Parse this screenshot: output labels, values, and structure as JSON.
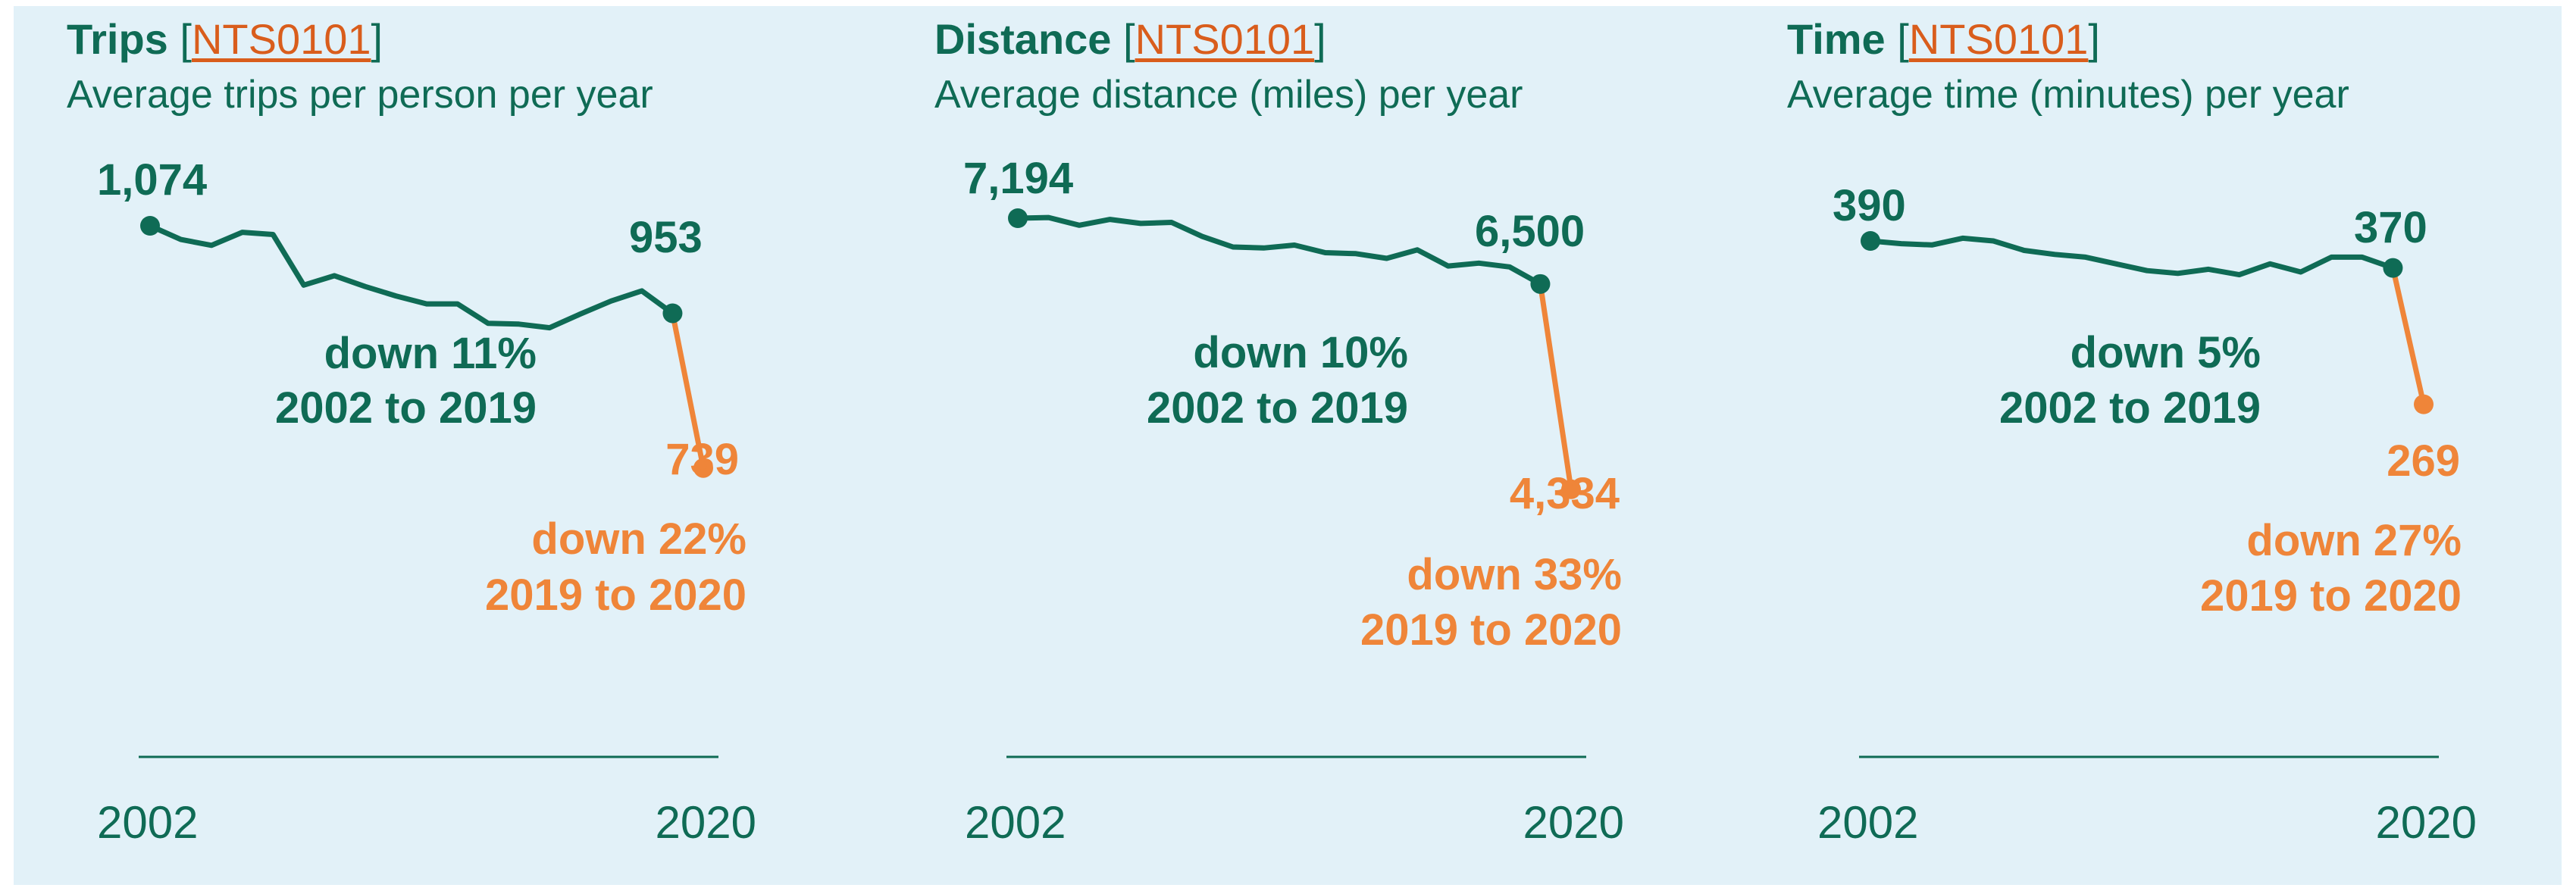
{
  "colors": {
    "green": "#0f6b55",
    "orange": "#ef8539",
    "link": "#d95d1c",
    "background": "#e2f1f8"
  },
  "panels": [
    {
      "title": "Trips",
      "title_link": "NTS0101",
      "subtitle": "Average trips per person per year",
      "start_label": "1,074",
      "end_green_label": "953",
      "end_orange_label": "739",
      "green_note": [
        "down 11%",
        "2002 to 2019"
      ],
      "orange_note": [
        "down 22%",
        "2019 to 2020"
      ],
      "x_first": "2002",
      "x_last": "2020"
    },
    {
      "title": "Distance",
      "title_link": "NTS0101",
      "subtitle": "Average distance (miles) per year",
      "start_label": "7,194",
      "end_green_label": "6,500",
      "end_orange_label": "4,334",
      "green_note": [
        "down 10%",
        "2002 to 2019"
      ],
      "orange_note": [
        "down 33%",
        "2019 to 2020"
      ],
      "x_first": "2002",
      "x_last": "2020"
    },
    {
      "title": "Time",
      "title_link": "NTS0101",
      "subtitle": "Average time (minutes) per year",
      "start_label": "390",
      "end_green_label": "370",
      "end_orange_label": "269",
      "green_note": [
        "down 5%",
        "2002 to 2019"
      ],
      "orange_note": [
        "down 27%",
        "2019 to 2020"
      ],
      "x_first": "2002",
      "x_last": "2020"
    }
  ],
  "chart_data": [
    {
      "type": "line",
      "title": "Trips",
      "subtitle": "Average trips per person per year",
      "x": [
        2002,
        2003,
        2004,
        2005,
        2006,
        2007,
        2008,
        2009,
        2010,
        2011,
        2012,
        2013,
        2014,
        2015,
        2016,
        2017,
        2018,
        2019,
        2020
      ],
      "series": [
        {
          "color": "#0f6b55",
          "values": [
            1074,
            1055,
            1047,
            1065,
            1062,
            992,
            1005,
            990,
            977,
            966,
            966,
            939,
            938,
            933,
            952,
            970,
            984,
            953,
            null
          ]
        },
        {
          "color": "#ef8539",
          "values": [
            null,
            null,
            null,
            null,
            null,
            null,
            null,
            null,
            null,
            null,
            null,
            null,
            null,
            null,
            null,
            null,
            null,
            953,
            739
          ]
        }
      ],
      "xlim": [
        2002,
        2020
      ],
      "ylim": [
        0,
        1120
      ],
      "grid": false
    },
    {
      "type": "line",
      "title": "Distance",
      "subtitle": "Average distance (miles) per year",
      "x": [
        2002,
        2003,
        2004,
        2005,
        2006,
        2007,
        2008,
        2009,
        2010,
        2011,
        2012,
        2013,
        2014,
        2015,
        2016,
        2017,
        2018,
        2019,
        2020
      ],
      "series": [
        {
          "color": "#0f6b55",
          "values": [
            7194,
            7201,
            7120,
            7181,
            7139,
            7150,
            7001,
            6890,
            6880,
            6910,
            6830,
            6820,
            6770,
            6860,
            6690,
            6720,
            6680,
            6500,
            null
          ]
        },
        {
          "color": "#ef8539",
          "values": [
            null,
            null,
            null,
            null,
            null,
            null,
            null,
            null,
            null,
            null,
            null,
            null,
            null,
            null,
            null,
            null,
            null,
            6500,
            4334
          ]
        }
      ],
      "xlim": [
        2002,
        2020
      ],
      "ylim": [
        0,
        7500
      ],
      "grid": false
    },
    {
      "type": "line",
      "title": "Time",
      "subtitle": "Average time (minutes) per year",
      "x": [
        2002,
        2003,
        2004,
        2005,
        2006,
        2007,
        2008,
        2009,
        2010,
        2011,
        2012,
        2013,
        2014,
        2015,
        2016,
        2017,
        2018,
        2019,
        2020
      ],
      "series": [
        {
          "color": "#0f6b55",
          "values": [
            390,
            388,
            387,
            392,
            390,
            383,
            380,
            378,
            373,
            368,
            366,
            369,
            365,
            373,
            367,
            378,
            378,
            370,
            null
          ]
        },
        {
          "color": "#ef8539",
          "values": [
            null,
            null,
            null,
            null,
            null,
            null,
            null,
            null,
            null,
            null,
            null,
            null,
            null,
            null,
            null,
            null,
            null,
            370,
            269
          ]
        }
      ],
      "xlim": [
        2002,
        2020
      ],
      "ylim": [
        0,
        410
      ],
      "grid": false
    }
  ]
}
